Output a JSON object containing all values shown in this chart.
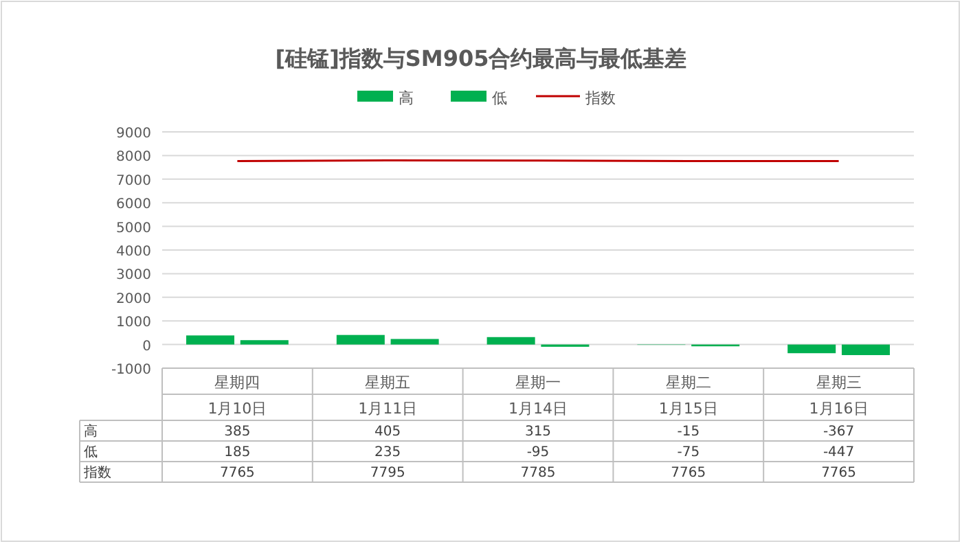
{
  "chart_data": {
    "type": "bar",
    "title": "[硅锰]指数与SM905合约最高与最低基差",
    "categories": [
      "星期四\n1月10日",
      "星期五\n1月11日",
      "星期一\n1月14日",
      "星期二\n1月15日",
      "星期三\n1月16日"
    ],
    "series": [
      {
        "name": "高",
        "color": "#00b050",
        "values": [
          385,
          405,
          315,
          -15,
          -367
        ]
      },
      {
        "name": "低",
        "color": "#00b050",
        "values": [
          185,
          235,
          -95,
          -75,
          -447
        ]
      },
      {
        "name": "指数",
        "type": "line",
        "color": "#c00000",
        "values": [
          7765,
          7795,
          7785,
          7765,
          7765
        ]
      }
    ],
    "ylim": [
      -1000,
      9000
    ],
    "yticks": [
      -1000,
      0,
      1000,
      2000,
      3000,
      4000,
      5000,
      6000,
      7000,
      8000,
      9000
    ],
    "grid": "y",
    "legend": "top",
    "data_labels": true
  }
}
